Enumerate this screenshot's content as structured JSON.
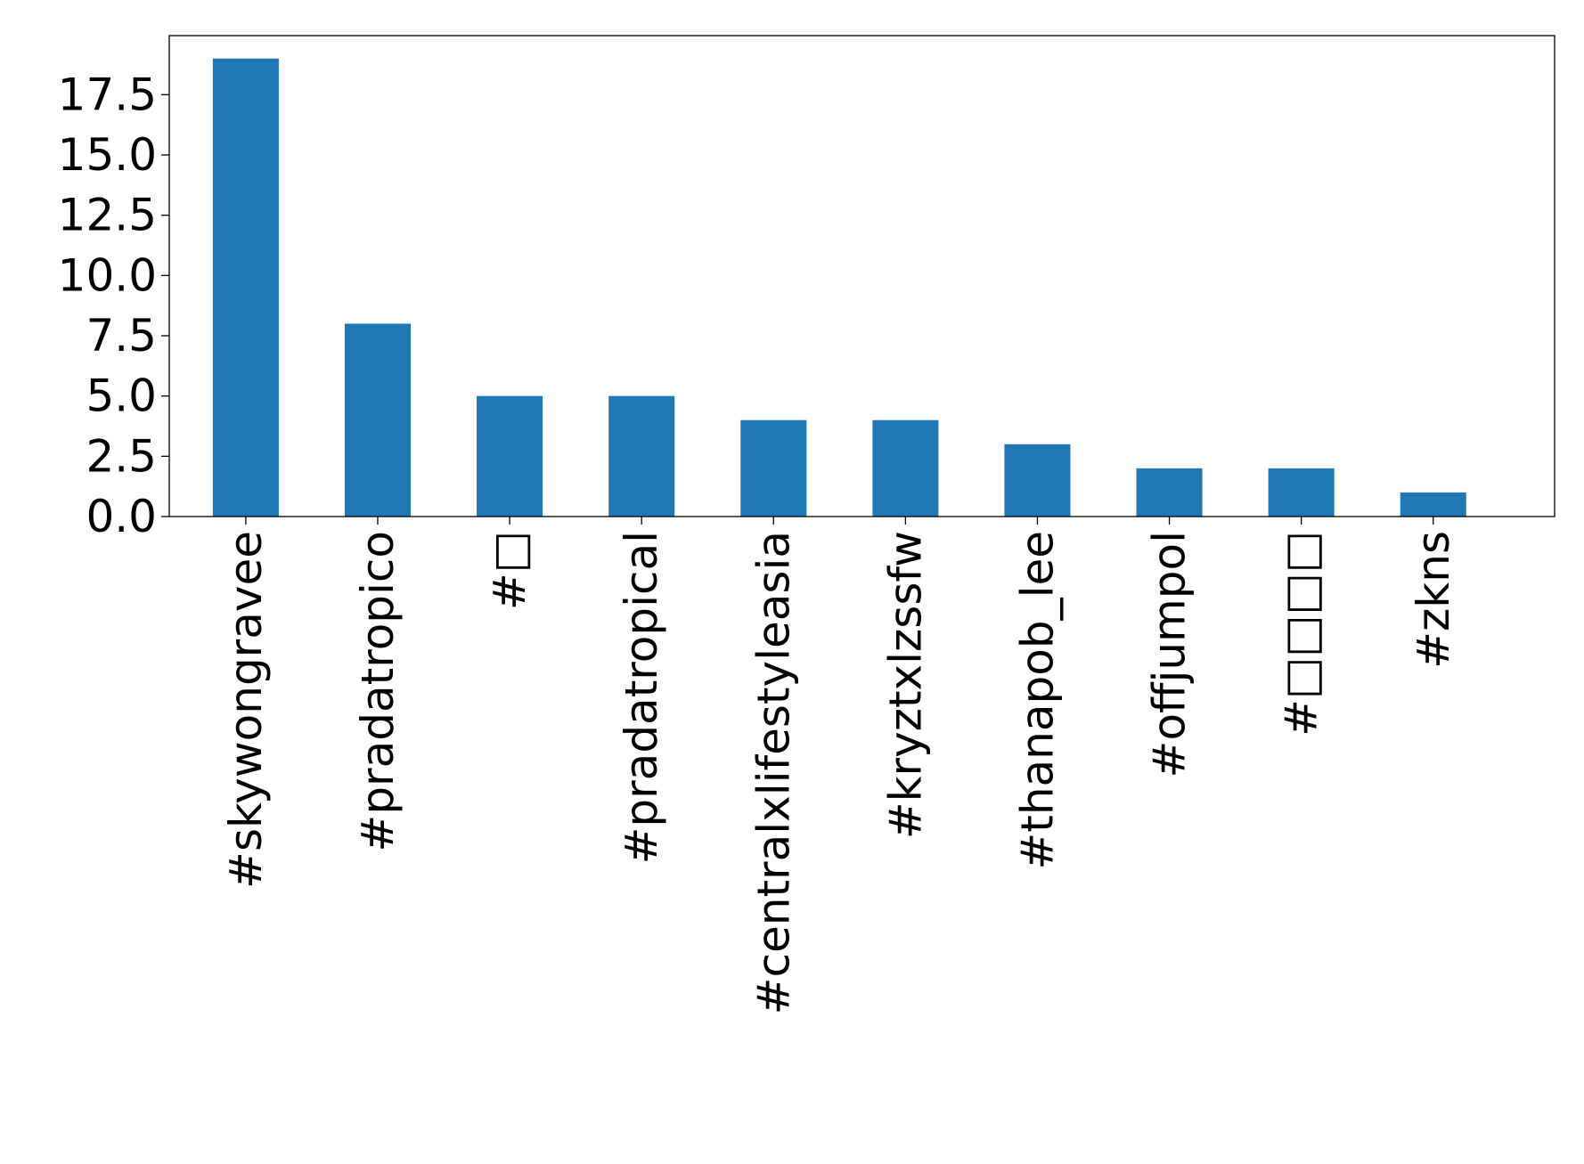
{
  "chart_data": {
    "type": "bar",
    "title": "",
    "xlabel": "",
    "ylabel": "",
    "categories": [
      "#skywongravee",
      "#pradatropico",
      "#□",
      "#pradatropical",
      "#centralxlifestyleasia",
      "#kryztxlzssfw",
      "#thanapob_lee",
      "#offjumpol",
      "#□□□□",
      "#zkns"
    ],
    "values": [
      19,
      8,
      5,
      5,
      4,
      4,
      3,
      2,
      2,
      1
    ],
    "ylim": [
      0,
      19.95
    ],
    "yticks": [
      0.0,
      2.5,
      5.0,
      7.5,
      10.0,
      12.5,
      15.0,
      17.5
    ],
    "ytick_labels": [
      "0.0",
      "2.5",
      "5.0",
      "7.5",
      "10.0",
      "12.5",
      "15.0",
      "17.5"
    ],
    "grid": false,
    "legend": "none",
    "bar_color": "#1f77b4"
  }
}
